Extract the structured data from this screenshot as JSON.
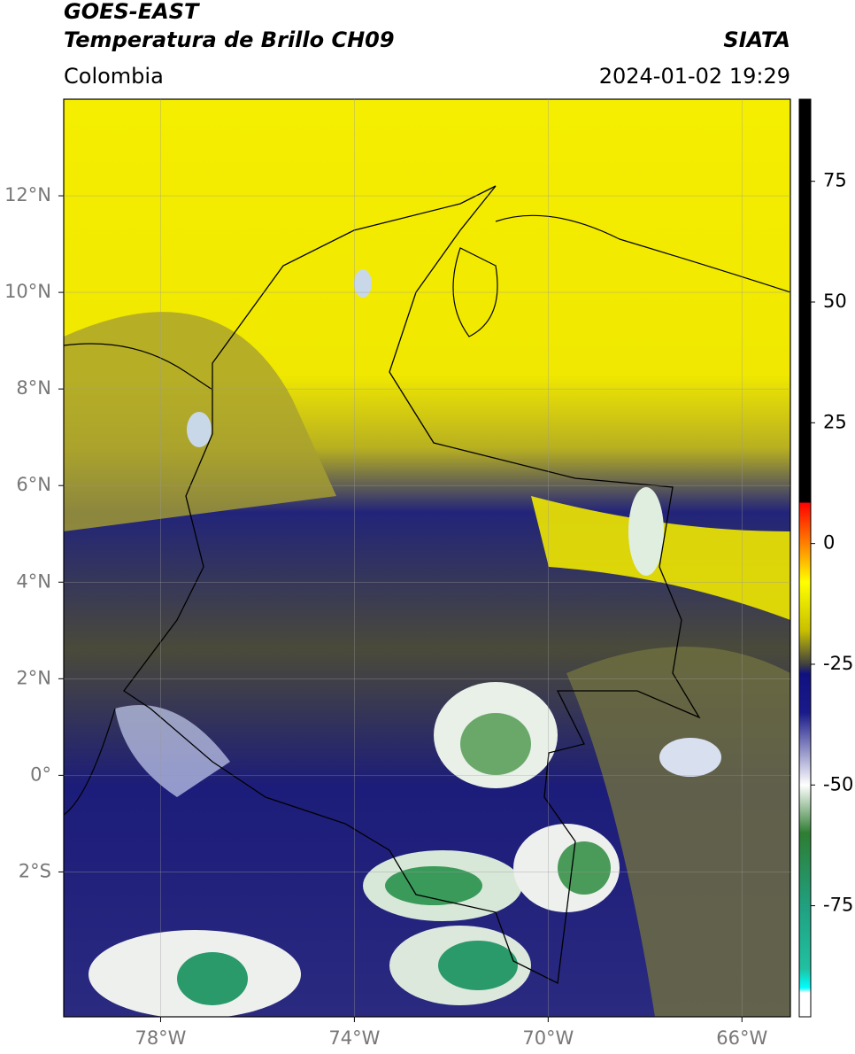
{
  "map": {
    "title": "GOES-EAST",
    "subtitle": "Temperatura de Brillo CH09",
    "region": "Colombia",
    "source": "SIATA",
    "datetime": "2024-01-02 19:29",
    "xlim": [
      -80,
      -65
    ],
    "ylim": [
      -5,
      14
    ],
    "xticks": [
      {
        "value": -78,
        "label": "78°W"
      },
      {
        "value": -74,
        "label": "74°W"
      },
      {
        "value": -70,
        "label": "70°W"
      },
      {
        "value": -66,
        "label": "66°W"
      }
    ],
    "yticks": [
      {
        "value": 12,
        "label": "12°N"
      },
      {
        "value": 10,
        "label": "10°N"
      },
      {
        "value": 8,
        "label": "8°N"
      },
      {
        "value": 6,
        "label": "6°N"
      },
      {
        "value": 4,
        "label": "4°N"
      },
      {
        "value": 2,
        "label": "2°N"
      },
      {
        "value": 0,
        "label": "0°"
      },
      {
        "value": -2,
        "label": "2°S"
      }
    ],
    "grid": true,
    "colorbar": {
      "lim": [
        -98,
        92
      ],
      "ticks": [
        75,
        50,
        25,
        0,
        -25,
        -50,
        -75
      ],
      "stops": [
        [
          92,
          "#000000"
        ],
        [
          8.5,
          "#000000"
        ],
        [
          8.5,
          "#ff0000"
        ],
        [
          0,
          "#ff8000"
        ],
        [
          -8,
          "#ffff00"
        ],
        [
          -18,
          "#c8c000"
        ],
        [
          -25,
          "#404040"
        ],
        [
          -27,
          "#101080"
        ],
        [
          -35,
          "#1a1a8a"
        ],
        [
          -50,
          "#ffffff"
        ],
        [
          -60,
          "#2e7d32"
        ],
        [
          -75,
          "#20a080"
        ],
        [
          -88,
          "#20c0a0"
        ],
        [
          -92,
          "#00ffff"
        ],
        [
          -93,
          "#ffffff"
        ],
        [
          -98,
          "#ffffff"
        ]
      ]
    }
  }
}
